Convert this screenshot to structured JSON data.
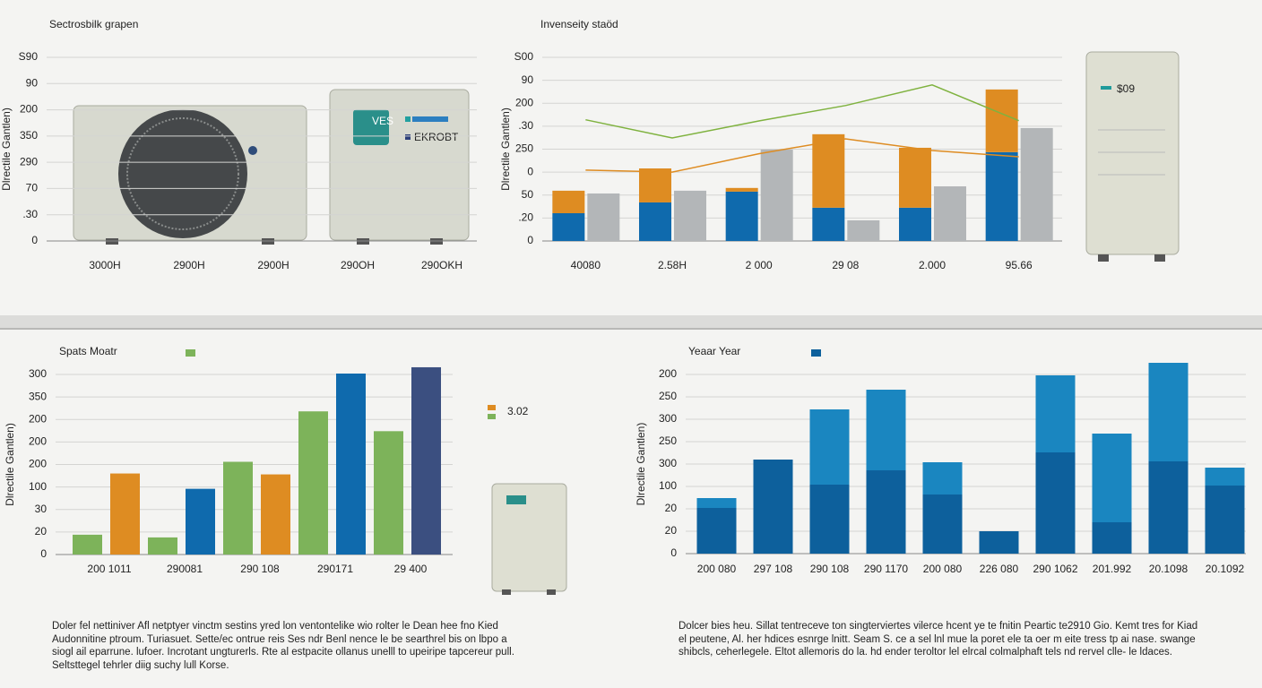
{
  "chart_data": [
    {
      "type": "bar",
      "title": "Sectrosbilk grapen",
      "ylabel": "Dlrectile Gantlen)",
      "categories": [
        "3000H",
        "2900H",
        "2900H",
        "290OH",
        "290OKH"
      ],
      "ylim": [
        0,
        7
      ],
      "yticks": [
        {
          "value": 0,
          "label": "0"
        },
        {
          "value": 1,
          "label": ".30"
        },
        {
          "value": 2,
          "label": "70"
        },
        {
          "value": 3,
          "label": "290"
        },
        {
          "value": 4,
          "label": "350"
        },
        {
          "value": 5,
          "label": "200"
        },
        {
          "value": 6,
          "label": "90"
        },
        {
          "value": 7,
          "label": "S90"
        }
      ],
      "series": [],
      "grid": true,
      "annotations": [
        "VES",
        "EKROBT"
      ]
    },
    {
      "type": "bar",
      "title": "Invenseity staöd",
      "ylabel": "Dlrectile Gantlen)",
      "categories": [
        "40080",
        "2.58H",
        "2 000",
        "29 08",
        "2.000",
        "95.66"
      ],
      "ylim": [
        0,
        8
      ],
      "yticks": [
        {
          "value": 0,
          "label": "0"
        },
        {
          "value": 1,
          "label": ".20"
        },
        {
          "value": 2,
          "label": "50"
        },
        {
          "value": 3,
          "label": "0"
        },
        {
          "value": 4,
          "label": "250"
        },
        {
          "value": 5,
          "label": ".30"
        },
        {
          "value": 6,
          "label": "200"
        },
        {
          "value": 7,
          "label": "90"
        },
        {
          "value": 8,
          "label": "S00"
        }
      ],
      "series": [
        {
          "color": "#0f6aad",
          "values": [
            1.21,
            1.68,
            2.15,
            1.45,
            1.45,
            3.87
          ]
        },
        {
          "color": "#de8c22",
          "values": [
            0.98,
            1.48,
            0.16,
            3.2,
            2.61,
            2.73
          ],
          "stacked": true
        },
        {
          "color": "#b3b6b8",
          "values": [
            2.07,
            2.19,
            3.98,
            0.9,
            2.38,
            4.92
          ]
        },
        {
          "type": "line",
          "color": "#7fb23f",
          "values": [
            5.28,
            4.49,
            5.23,
            5.9,
            6.8,
            5.24
          ]
        },
        {
          "type": "line",
          "color": "#de8c22",
          "values": [
            3.09,
            3.0,
            3.8,
            4.45,
            3.94,
            3.67
          ]
        }
      ],
      "grid": true,
      "annotations": [
        "$09"
      ]
    },
    {
      "type": "bar",
      "title": "Spats Moatr",
      "ylabel": "Dlrectile Gantlen)",
      "categories": [
        "200 1011",
        "290081",
        "290 108",
        "290171",
        "29 400"
      ],
      "ylim": [
        0,
        8
      ],
      "yticks": [
        {
          "value": 0,
          "label": "0"
        },
        {
          "value": 1,
          "label": "20"
        },
        {
          "value": 2,
          "label": "30"
        },
        {
          "value": 3,
          "label": "100"
        },
        {
          "value": 4,
          "label": "200"
        },
        {
          "value": 5,
          "label": "200"
        },
        {
          "value": 6,
          "label": "200"
        },
        {
          "value": 7,
          "label": "350"
        },
        {
          "value": 8,
          "label": "300"
        }
      ],
      "series": [
        {
          "color": "#7db35a",
          "values": [
            0.88,
            0.76,
            4.12,
            6.36,
            5.48
          ]
        },
        {
          "colors": [
            "#de8c22",
            "#0f6aad",
            "#de8c22",
            "#0f6aad",
            "#3b4f80"
          ],
          "values": [
            3.6,
            2.92,
            3.56,
            8.04,
            8.32
          ]
        }
      ],
      "grid": true,
      "annotations": [
        "3.02"
      ],
      "note": "Doler fel nettiniver Afl netptyer vinctm sestins yred lon ventontelike wio rolter le Dean hee fno Kied Audonnitine ptroum. Turiasuet. Sette/ec ontrue reis Ses ndr Benl nence le be searthrel bis on lbpo a siogl ail eparrune. lufoer. Incrotant ungturerls. Rte al estpacite ollanus unelll to upeiripe tapcereur pull. Seltsttegel tehrler diig suchy lull Korse."
    },
    {
      "type": "bar",
      "title": "Yeaar Year",
      "ylabel": "Dlrectile Gantlen)",
      "categories": [
        "200 080",
        "297 108",
        "290 108",
        "290 1170",
        "200 080",
        "226 080",
        "290 1062",
        "201.992",
        "20.1098",
        "20.1092"
      ],
      "ylim": [
        0,
        8
      ],
      "yticks": [
        {
          "value": 0,
          "label": "0"
        },
        {
          "value": 1,
          "label": "20"
        },
        {
          "value": 2,
          "label": "20"
        },
        {
          "value": 3,
          "label": "100"
        },
        {
          "value": 4,
          "label": "300"
        },
        {
          "value": 5,
          "label": "250"
        },
        {
          "value": 6,
          "label": "300"
        },
        {
          "value": 7,
          "label": "250"
        },
        {
          "value": 8,
          "label": "200"
        }
      ],
      "series": [
        {
          "color": "#0d609c",
          "values": [
            2.04,
            4.2,
            3.08,
            3.72,
            2.64,
            1.0,
            4.52,
            1.4,
            4.12,
            3.04
          ]
        },
        {
          "color": "#1a86c0",
          "values": [
            0.44,
            0,
            3.36,
            3.6,
            1.44,
            0,
            3.44,
            3.96,
            4.4,
            0.8
          ],
          "stacked": true
        }
      ],
      "grid": true,
      "note": "Dolcer bies heu. Sillat tentreceve ton singterviertes vilerce hcent ye te fnitin Peartic te2910 Gio. Kemt tres for Kiad el peutene, Al. her hdices esnrge lnitt. Seam S. ce a sel lnl mue la poret ele ta oer m eite tress tp ai nase. swange shibcls, ceherlegele. Eltot allemoris do la. hd ender teroltor lel elrcal colmalphaft tels nd rervel clle- le ldaces."
    }
  ]
}
